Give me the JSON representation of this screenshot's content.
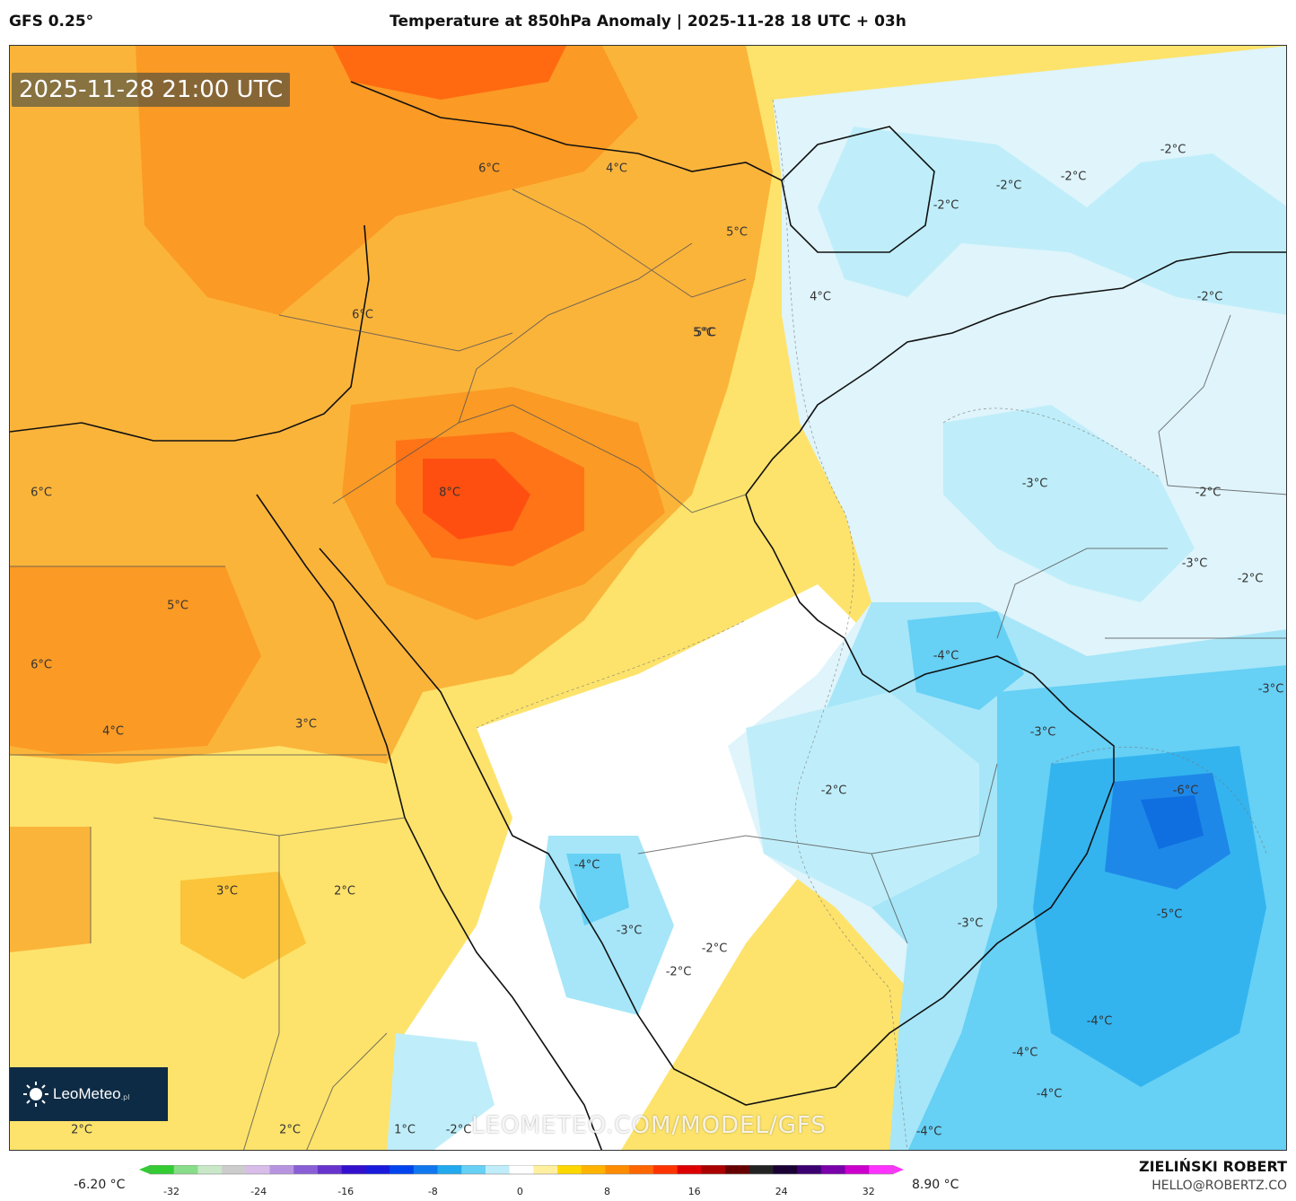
{
  "header": {
    "model": "GFS 0.25°",
    "title": "Temperature at 850hPa Anomaly | 2025-11-28 18 UTC + 03h"
  },
  "map": {
    "timestamp": "2025-11-28 21:00 UTC",
    "watermark": "LEOMETEO.COM/MODEL/GFS",
    "logo": {
      "name": "LeoMeteo",
      "tld": ".pl",
      "icon": "sun-icon"
    },
    "labels": [
      {
        "text": "6°C",
        "region": "Black Sea / Turkey"
      },
      {
        "text": "4°C",
        "region": "Caucasus"
      },
      {
        "text": "5°C",
        "region": "Armenia"
      },
      {
        "text": "5°C",
        "region": "Azerbaijan"
      },
      {
        "text": "4°C",
        "region": "Caspian south"
      },
      {
        "text": "5°C",
        "region": "Northern Iraq"
      },
      {
        "text": "6°C",
        "region": "Lebanon"
      },
      {
        "text": "8°C",
        "region": "Northern Saudi Arabia"
      },
      {
        "text": "6°C",
        "region": "Libya"
      },
      {
        "text": "5°C",
        "region": "Egypt"
      },
      {
        "text": "6°C",
        "region": "Libya south"
      },
      {
        "text": "4°C",
        "region": "Egypt south-west"
      },
      {
        "text": "3°C",
        "region": "Red Sea coast"
      },
      {
        "text": "3°C",
        "region": "Sudan"
      },
      {
        "text": "2°C",
        "region": "Sudan east"
      },
      {
        "text": "2°C",
        "region": "South Sudan"
      },
      {
        "text": "2°C",
        "region": "Ethiopia west"
      },
      {
        "text": "1°C",
        "region": "Ethiopia"
      },
      {
        "text": "-2°C",
        "region": "Ethiopia east"
      },
      {
        "text": "-2°C",
        "region": "Turkmenistan west"
      },
      {
        "text": "-2°C",
        "region": "Turkmenistan"
      },
      {
        "text": "-2°C",
        "region": "Turkmenistan east"
      },
      {
        "text": "-2°C",
        "region": "Uzbekistan"
      },
      {
        "text": "-2°C",
        "region": "Afghanistan north"
      },
      {
        "text": "-3°C",
        "region": "Iran east"
      },
      {
        "text": "-2°C",
        "region": "Afghanistan south"
      },
      {
        "text": "-3°C",
        "region": "Pakistan west"
      },
      {
        "text": "-2°C",
        "region": "Pakistan"
      },
      {
        "text": "-4°C",
        "region": "UAE"
      },
      {
        "text": "-3°C",
        "region": "Oman"
      },
      {
        "text": "-3°C",
        "region": "Arabian Sea north-east"
      },
      {
        "text": "-6°C",
        "region": "Arabian Sea"
      },
      {
        "text": "-2°C",
        "region": "Rub al Khali"
      },
      {
        "text": "-4°C",
        "region": "Yemen west"
      },
      {
        "text": "-3°C",
        "region": "Yemen highlands"
      },
      {
        "text": "-2°C",
        "region": "Yemen"
      },
      {
        "text": "-2°C",
        "region": "Yemen south"
      },
      {
        "text": "-3°C",
        "region": "Oman south"
      },
      {
        "text": "-5°C",
        "region": "Arabian Sea central"
      },
      {
        "text": "-4°C",
        "region": "Arabian Sea south"
      },
      {
        "text": "-4°C",
        "region": "Socotra north"
      },
      {
        "text": "-4°C",
        "region": "Socotra"
      },
      {
        "text": "-4°C",
        "region": "Somali Sea"
      }
    ]
  },
  "colorbar": {
    "min_label": "-6.20 °C",
    "max_label": "8.90 °C",
    "ticks": [
      "-32",
      "-24",
      "-16",
      "-8",
      "0",
      "8",
      "16",
      "24",
      "32"
    ],
    "colors": [
      "#33cc33",
      "#88dd88",
      "#c8e8c8",
      "#cccccc",
      "#d7bde8",
      "#b794e0",
      "#8a5fd6",
      "#6633cc",
      "#3311cc",
      "#1a1adc",
      "#0044ee",
      "#1177ee",
      "#22aaee",
      "#66d0f5",
      "#bfeefa",
      "#ffffff",
      "#fff0a0",
      "#ffd700",
      "#ffb300",
      "#ff8c00",
      "#ff6600",
      "#ff3300",
      "#dd0000",
      "#aa0000",
      "#660000",
      "#222222",
      "#1a0033",
      "#3c0070",
      "#7a00aa",
      "#cc00cc",
      "#ff33ff"
    ]
  },
  "footer": {
    "author": "ZIELIŃSKI ROBERT",
    "email": "HELLO@ROBERTZ.CO"
  }
}
